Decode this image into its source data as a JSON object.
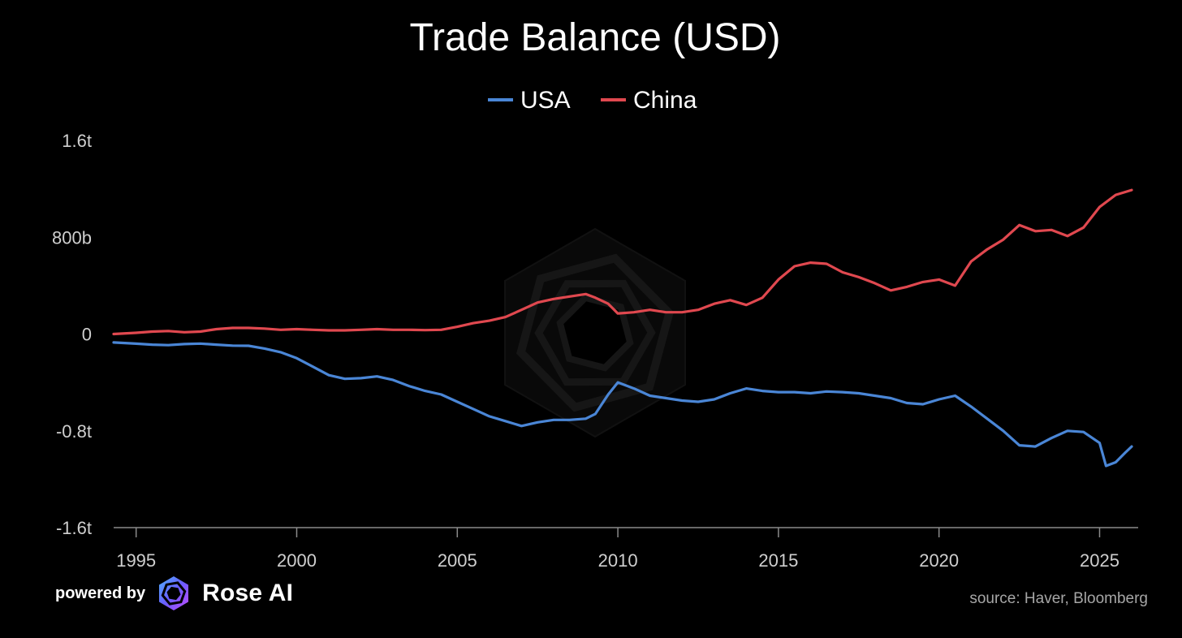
{
  "chart_data": {
    "type": "line",
    "title": "Trade Balance (USD)",
    "y_ticks": [
      {
        "value": 1600,
        "label": "1.6t"
      },
      {
        "value": 800,
        "label": "800b"
      },
      {
        "value": 0,
        "label": "0"
      },
      {
        "value": -800,
        "label": "-0.8t"
      },
      {
        "value": -1600,
        "label": "-1.6t"
      }
    ],
    "x_ticks": [
      "1995",
      "2000",
      "2005",
      "2010",
      "2015",
      "2020",
      "2025"
    ],
    "xlim": [
      1994.3,
      2026.1
    ],
    "ylim": [
      -1600,
      1600
    ],
    "legend_position": "top-center",
    "series": [
      {
        "name": "USA",
        "color": "#4a86d6",
        "points": [
          [
            1994.3,
            -70
          ],
          [
            1995.0,
            -80
          ],
          [
            1995.5,
            -88
          ],
          [
            1996.0,
            -92
          ],
          [
            1996.5,
            -83
          ],
          [
            1997.0,
            -79
          ],
          [
            1997.5,
            -88
          ],
          [
            1998.0,
            -96
          ],
          [
            1998.5,
            -97
          ],
          [
            1999.0,
            -120
          ],
          [
            1999.5,
            -150
          ],
          [
            2000.0,
            -200
          ],
          [
            2000.5,
            -270
          ],
          [
            2001.0,
            -340
          ],
          [
            2001.5,
            -370
          ],
          [
            2002.0,
            -365
          ],
          [
            2002.5,
            -350
          ],
          [
            2003.0,
            -380
          ],
          [
            2003.5,
            -430
          ],
          [
            2004.0,
            -470
          ],
          [
            2004.5,
            -500
          ],
          [
            2005.0,
            -560
          ],
          [
            2005.5,
            -620
          ],
          [
            2006.0,
            -680
          ],
          [
            2006.5,
            -720
          ],
          [
            2007.0,
            -760
          ],
          [
            2007.5,
            -730
          ],
          [
            2008.0,
            -710
          ],
          [
            2008.5,
            -710
          ],
          [
            2009.0,
            -700
          ],
          [
            2009.3,
            -660
          ],
          [
            2009.7,
            -500
          ],
          [
            2010.0,
            -400
          ],
          [
            2010.5,
            -450
          ],
          [
            2011.0,
            -510
          ],
          [
            2011.5,
            -530
          ],
          [
            2012.0,
            -550
          ],
          [
            2012.5,
            -560
          ],
          [
            2013.0,
            -540
          ],
          [
            2013.5,
            -490
          ],
          [
            2014.0,
            -450
          ],
          [
            2014.5,
            -470
          ],
          [
            2015.0,
            -480
          ],
          [
            2015.5,
            -480
          ],
          [
            2016.0,
            -490
          ],
          [
            2016.5,
            -475
          ],
          [
            2017.0,
            -480
          ],
          [
            2017.5,
            -490
          ],
          [
            2018.0,
            -510
          ],
          [
            2018.5,
            -530
          ],
          [
            2019.0,
            -570
          ],
          [
            2019.5,
            -580
          ],
          [
            2020.0,
            -540
          ],
          [
            2020.5,
            -510
          ],
          [
            2021.0,
            -600
          ],
          [
            2021.5,
            -700
          ],
          [
            2022.0,
            -800
          ],
          [
            2022.5,
            -920
          ],
          [
            2023.0,
            -930
          ],
          [
            2023.5,
            -860
          ],
          [
            2024.0,
            -800
          ],
          [
            2024.5,
            -810
          ],
          [
            2025.0,
            -900
          ],
          [
            2025.2,
            -1090
          ],
          [
            2025.5,
            -1060
          ],
          [
            2025.8,
            -980
          ],
          [
            2026.0,
            -930
          ]
        ]
      },
      {
        "name": "China",
        "color": "#e0484f",
        "points": [
          [
            1994.3,
            0
          ],
          [
            1995.0,
            10
          ],
          [
            1995.5,
            20
          ],
          [
            1996.0,
            25
          ],
          [
            1996.5,
            15
          ],
          [
            1997.0,
            20
          ],
          [
            1997.5,
            40
          ],
          [
            1998.0,
            50
          ],
          [
            1998.5,
            50
          ],
          [
            1999.0,
            45
          ],
          [
            1999.5,
            35
          ],
          [
            2000.0,
            40
          ],
          [
            2000.5,
            35
          ],
          [
            2001.0,
            30
          ],
          [
            2001.5,
            30
          ],
          [
            2002.0,
            35
          ],
          [
            2002.5,
            40
          ],
          [
            2003.0,
            35
          ],
          [
            2003.5,
            35
          ],
          [
            2004.0,
            32
          ],
          [
            2004.5,
            35
          ],
          [
            2005.0,
            60
          ],
          [
            2005.5,
            90
          ],
          [
            2006.0,
            110
          ],
          [
            2006.5,
            140
          ],
          [
            2007.0,
            200
          ],
          [
            2007.5,
            260
          ],
          [
            2008.0,
            290
          ],
          [
            2008.5,
            310
          ],
          [
            2009.0,
            330
          ],
          [
            2009.3,
            300
          ],
          [
            2009.7,
            250
          ],
          [
            2010.0,
            170
          ],
          [
            2010.5,
            180
          ],
          [
            2011.0,
            200
          ],
          [
            2011.5,
            180
          ],
          [
            2012.0,
            180
          ],
          [
            2012.5,
            200
          ],
          [
            2013.0,
            250
          ],
          [
            2013.5,
            280
          ],
          [
            2014.0,
            240
          ],
          [
            2014.5,
            300
          ],
          [
            2015.0,
            450
          ],
          [
            2015.5,
            560
          ],
          [
            2016.0,
            590
          ],
          [
            2016.5,
            580
          ],
          [
            2017.0,
            510
          ],
          [
            2017.5,
            470
          ],
          [
            2018.0,
            420
          ],
          [
            2018.5,
            360
          ],
          [
            2019.0,
            390
          ],
          [
            2019.5,
            430
          ],
          [
            2020.0,
            450
          ],
          [
            2020.5,
            400
          ],
          [
            2021.0,
            600
          ],
          [
            2021.5,
            700
          ],
          [
            2022.0,
            780
          ],
          [
            2022.5,
            900
          ],
          [
            2023.0,
            850
          ],
          [
            2023.5,
            860
          ],
          [
            2024.0,
            810
          ],
          [
            2024.5,
            880
          ],
          [
            2025.0,
            1050
          ],
          [
            2025.5,
            1150
          ],
          [
            2026.0,
            1190
          ]
        ]
      }
    ]
  },
  "footer": {
    "powered_by": "powered by",
    "brand": "Rose AI",
    "source": "source: Haver, Bloomberg"
  }
}
